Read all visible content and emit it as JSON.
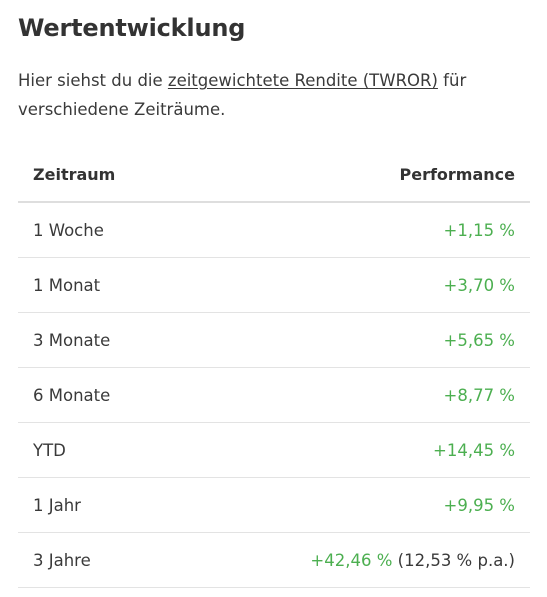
{
  "title": "Wertentwicklung",
  "intro": {
    "prefix": "Hier siehst du die ",
    "link": "zeitgewichtete Rendite (TWROR)",
    "suffix": " für verschiedene Zeiträume."
  },
  "table": {
    "headers": {
      "period": "Zeitraum",
      "performance": "Performance"
    },
    "rows": [
      {
        "period": "1 Woche",
        "value": "+1,15 %",
        "pa": ""
      },
      {
        "period": "1 Monat",
        "value": "+3,70 %",
        "pa": ""
      },
      {
        "period": "3 Monate",
        "value": "+5,65 %",
        "pa": ""
      },
      {
        "period": "6 Monate",
        "value": "+8,77 %",
        "pa": ""
      },
      {
        "period": "YTD",
        "value": "+14,45 %",
        "pa": ""
      },
      {
        "period": "1 Jahr",
        "value": "+9,95 %",
        "pa": ""
      },
      {
        "period": "3 Jahre",
        "value": "+42,46 %",
        "pa": "(12,53 % p.a.)"
      }
    ]
  },
  "colors": {
    "positive": "#4caf50",
    "text": "#333333"
  }
}
